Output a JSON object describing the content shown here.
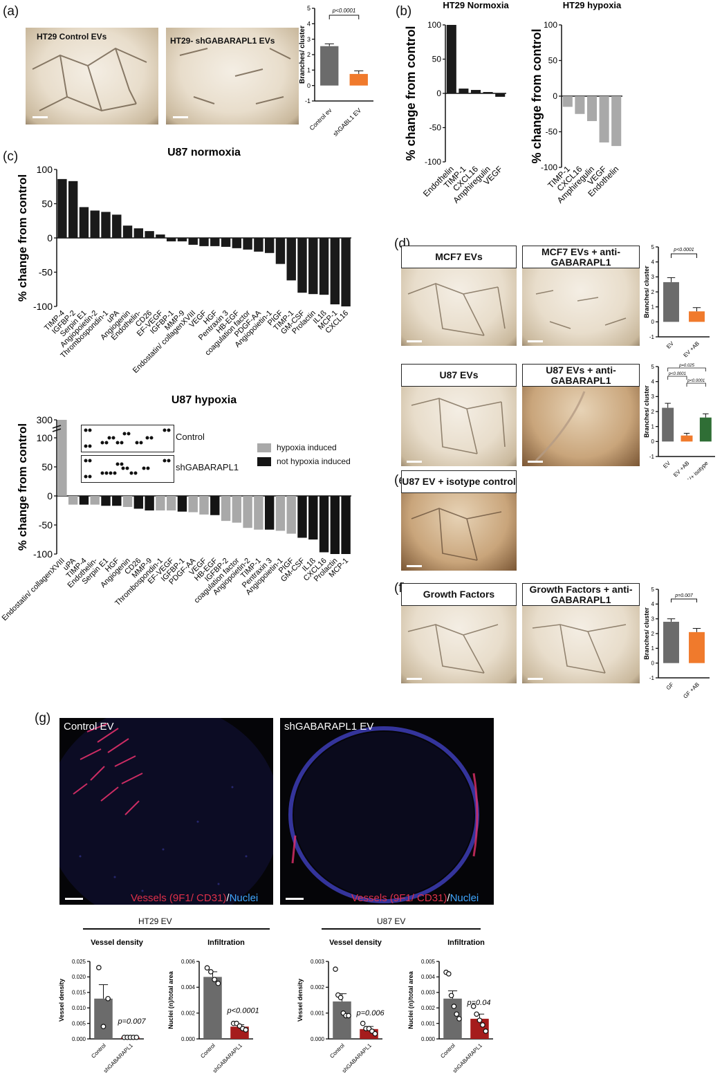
{
  "panels": {
    "a": "(a)",
    "b": "(b)",
    "c": "(c)",
    "d": "(d)",
    "e": "(e)",
    "f": "(f)",
    "g": "(g)"
  },
  "micrographs": {
    "ht29_control": "HT29 Control EVs",
    "ht29_sh": "HT29- shGABARAPL1 EVs",
    "mcf7": "MCF7 EVs",
    "mcf7_ab": "MCF7 EVs + anti-GABARAPL1",
    "u87": "U87 EVs",
    "u87_ab": "U87 EVs + anti-GABARAPL1",
    "u87_iso": "U87 EV + isotype control",
    "gf": "Growth Factors",
    "gf_ab": "Growth Factors + anti-GABARAPL1"
  },
  "fluorescence": {
    "control": "Control EV",
    "sh": "shGABARAPL1 EV",
    "stain_vessels": "Vessels (9F1/ CD31)",
    "stain_sep": "/",
    "stain_nuclei": "Nuclei"
  },
  "blot": {
    "control": "Control",
    "sh": "shGABARAPL1"
  },
  "legend_c": {
    "hypoxia": "hypoxia induced",
    "not_hypoxia": "not hypoxia induced",
    "hypoxia_color": "#a9a9a9",
    "not_color": "#141414"
  },
  "group_g": {
    "ht29": "HT29 EV",
    "u87": "U87 EV"
  },
  "chart_data": [
    {
      "id": "a",
      "type": "bar",
      "categories": [
        "Control ev",
        "shGABL1 EV"
      ],
      "values": [
        2.55,
        0.75
      ],
      "errors": [
        0.15,
        0.2
      ],
      "colors": [
        "#6b6b6b",
        "#f07a2c"
      ],
      "ylabel": "Branches/ cluster",
      "ylim": [
        -1,
        5
      ],
      "yticks": [
        -1,
        0,
        1,
        2,
        3,
        4,
        5
      ],
      "annotation": "p<0.0001"
    },
    {
      "id": "b1",
      "type": "bar",
      "title": "HT29 Normoxia",
      "categories": [
        "Endothelin",
        "TIMP-1",
        "CXCL16",
        "Amphiregulin",
        "VEGF"
      ],
      "values": [
        100,
        7,
        5,
        2,
        -5
      ],
      "color": "#1a1a1a",
      "ylabel": "% change from control",
      "ylim": [
        -100,
        100
      ],
      "yticks": [
        -100,
        -50,
        0,
        50,
        100
      ]
    },
    {
      "id": "b2",
      "type": "bar",
      "title": "HT29 hypoxia",
      "categories": [
        "TIMP-1",
        "CXCL16",
        "Amphiregulin",
        "VEGF",
        "Endothelin"
      ],
      "values": [
        -15,
        -25,
        -35,
        -65,
        -70
      ],
      "color": "#a9a9a9",
      "ylabel": "% change from control",
      "ylim": [
        -100,
        100
      ],
      "yticks": [
        -100,
        -50,
        0,
        50,
        100
      ]
    },
    {
      "id": "c1",
      "type": "bar",
      "title": "U87 normoxia",
      "categories": [
        "TIMP-4",
        "IGFBP-2",
        "Serpin E1",
        "Angiopoietin-2",
        "Thrombospondin-1",
        "uPA",
        "Angiogenin",
        "Endothelin-",
        "CD26",
        "EF-VEGF",
        "IGFBP-1",
        "MMP-9",
        "Endostatin/ collagenXVIII",
        "VEGF",
        "HGF",
        "Pentraxin 3",
        "HB-EGF",
        "coagulation factor",
        "PDGF-AA",
        "Angiopoietin-1",
        "PIGF",
        "TIMP-1",
        "GM-CSF",
        "Prolactin",
        "IL1ß",
        "MCP-1",
        "CXCL16"
      ],
      "values": [
        86,
        83,
        45,
        40,
        38,
        34,
        18,
        14,
        10,
        5,
        -5,
        -5,
        -10,
        -12,
        -12,
        -13,
        -15,
        -17,
        -20,
        -22,
        -38,
        -62,
        -80,
        -82,
        -83,
        -97,
        -100
      ],
      "color": "#1a1a1a",
      "ylabel": "% change from control",
      "ylim": [
        -100,
        100
      ],
      "yticks": [
        -100,
        -50,
        0,
        50,
        100
      ]
    },
    {
      "id": "c2",
      "type": "bar",
      "title": "U87 hypoxia",
      "categories": [
        "Endostatin/ collagenXVIII",
        "uPA",
        "TIMP-4",
        "Endothelin-",
        "Serpin E1",
        "HGF",
        "Angiogenin",
        "CD26",
        "MMP-9",
        "Thrombospondin-1",
        "EF-VEGF",
        "IGFBP-1",
        "PDGF-AA",
        "VEGF",
        "HB-EGF",
        "IGFBP-2",
        "coagulation factor",
        "Angiopoietin-2",
        "TIMP-1",
        "Pentraxin 3",
        "Angiopoietin-1",
        "PIGF",
        "GM-CSF",
        "IL1ß",
        "CXCL16",
        "Prolactin",
        "MCP-1"
      ],
      "values": [
        280,
        -15,
        -15,
        -15,
        -17,
        -17,
        -19,
        -22,
        -25,
        -25,
        -25,
        -27,
        -28,
        -32,
        -33,
        -43,
        -46,
        -55,
        -58,
        -58,
        -60,
        -65,
        -72,
        -75,
        -97,
        -100,
        -100
      ],
      "hypoxia_induced": [
        true,
        true,
        false,
        true,
        false,
        false,
        true,
        false,
        false,
        true,
        true,
        false,
        true,
        true,
        false,
        true,
        true,
        true,
        true,
        false,
        true,
        true,
        false,
        false,
        false,
        false,
        false
      ],
      "ylabel": "% change from control",
      "ylim": [
        -100,
        300
      ],
      "yticks": [
        -100,
        -50,
        0,
        50,
        100,
        300
      ]
    },
    {
      "id": "d1",
      "type": "bar",
      "categories": [
        "EV",
        "EV +AB"
      ],
      "values": [
        2.65,
        0.7
      ],
      "errors": [
        0.3,
        0.25
      ],
      "colors": [
        "#6b6b6b",
        "#f07a2c"
      ],
      "ylabel": "Branches/ cluster",
      "ylim": [
        -1,
        5
      ],
      "yticks": [
        -1,
        0,
        1,
        2,
        3,
        4,
        5
      ],
      "annotation": "p<0.0001"
    },
    {
      "id": "d2",
      "type": "bar",
      "categories": [
        "EV",
        "EV +AB",
        "EV+ isotype"
      ],
      "values": [
        2.25,
        0.4,
        1.6
      ],
      "errors": [
        0.3,
        0.15,
        0.25
      ],
      "colors": [
        "#6b6b6b",
        "#f07a2c",
        "#2f6e35"
      ],
      "ylabel": "Branches/ cluster",
      "ylim": [
        -1,
        5
      ],
      "yticks": [
        -1,
        0,
        1,
        2,
        3,
        4,
        5
      ],
      "annotations": [
        "p<0.0001",
        "p=0.025",
        "p<0.0001"
      ]
    },
    {
      "id": "f",
      "type": "bar",
      "categories": [
        "GF",
        "GF +AB"
      ],
      "values": [
        2.8,
        2.1
      ],
      "errors": [
        0.2,
        0.25
      ],
      "colors": [
        "#6b6b6b",
        "#f07a2c"
      ],
      "ylabel": "Branches/ cluster",
      "ylim": [
        -1,
        5
      ],
      "yticks": [
        -1,
        0,
        1,
        2,
        3,
        4,
        5
      ],
      "annotation": "p=0.007"
    },
    {
      "id": "g1",
      "type": "bar",
      "title": "Vessel density",
      "categories": [
        "Control",
        "shGABARAPL1"
      ],
      "values": [
        0.013,
        0.0005
      ],
      "errors": [
        0.0045,
        0.0002
      ],
      "points": [
        [
          0.023,
          0.004,
          0.013
        ],
        [
          0.0005,
          0.0005,
          0.0005,
          0.0005,
          0.0005
        ]
      ],
      "colors": [
        "#6b6b6b",
        "#a51c1c"
      ],
      "ylabel": "Vessel density",
      "ylim": [
        0,
        0.025
      ],
      "yticks": [
        0.0,
        0.005,
        0.01,
        0.015,
        0.02,
        0.025
      ],
      "ytick_labels": [
        "0.000",
        "0.005",
        "0.010",
        "0.015",
        "0.020",
        "0.025"
      ],
      "annotation": "p=0.007"
    },
    {
      "id": "g2",
      "type": "bar",
      "title": "Infiltration",
      "categories": [
        "Control",
        "shGABARAPL1"
      ],
      "values": [
        0.0048,
        0.00095
      ],
      "errors": [
        0.0004,
        0.00015
      ],
      "points": [
        [
          0.0055,
          0.0052,
          0.0046,
          0.0043
        ],
        [
          0.0012,
          0.0012,
          0.001,
          0.0008,
          0.0007
        ]
      ],
      "colors": [
        "#6b6b6b",
        "#a51c1c"
      ],
      "ylabel": "Nuclei (n)/total area",
      "ylim": [
        0,
        0.006
      ],
      "yticks": [
        0.0,
        0.002,
        0.004,
        0.006
      ],
      "ytick_labels": [
        "0.000",
        "0.002",
        "0.004",
        "0.006"
      ],
      "annotation": "p<0.0001"
    },
    {
      "id": "g3",
      "type": "bar",
      "title": "Vessel density",
      "categories": [
        "Control",
        "shGABARAPL1"
      ],
      "values": [
        0.00145,
        0.00038
      ],
      "errors": [
        0.0003,
        0.0001
      ],
      "points": [
        [
          0.0027,
          0.0017,
          0.0016,
          0.001,
          0.0009,
          0.0009
        ],
        [
          0.0006,
          0.0004,
          0.0004,
          0.0003,
          0.0002
        ]
      ],
      "colors": [
        "#6b6b6b",
        "#a51c1c"
      ],
      "ylabel": "Vessel density",
      "ylim": [
        0,
        0.003
      ],
      "yticks": [
        0.0,
        0.001,
        0.002,
        0.003
      ],
      "ytick_labels": [
        "0.000",
        "0.001",
        "0.002",
        "0.003"
      ],
      "annotation": "p=0.006"
    },
    {
      "id": "g4",
      "type": "bar",
      "title": "Infiltration",
      "categories": [
        "Control",
        "shGABARAPL1"
      ],
      "values": [
        0.0026,
        0.0013
      ],
      "errors": [
        0.0005,
        0.0003
      ],
      "points": [
        [
          0.0043,
          0.0042,
          0.0028,
          0.0021,
          0.0016,
          0.0013
        ],
        [
          0.0021,
          0.0016,
          0.0012,
          0.0009,
          0.0005
        ]
      ],
      "colors": [
        "#6b6b6b",
        "#a51c1c"
      ],
      "ylabel": "Nuclei (n)/total area",
      "ylim": [
        0,
        0.005
      ],
      "yticks": [
        0.0,
        0.001,
        0.002,
        0.003,
        0.004,
        0.005
      ],
      "ytick_labels": [
        "0.000",
        "0.001",
        "0.002",
        "0.003",
        "0.004",
        "0.005"
      ],
      "annotation": "p=0.04"
    }
  ]
}
